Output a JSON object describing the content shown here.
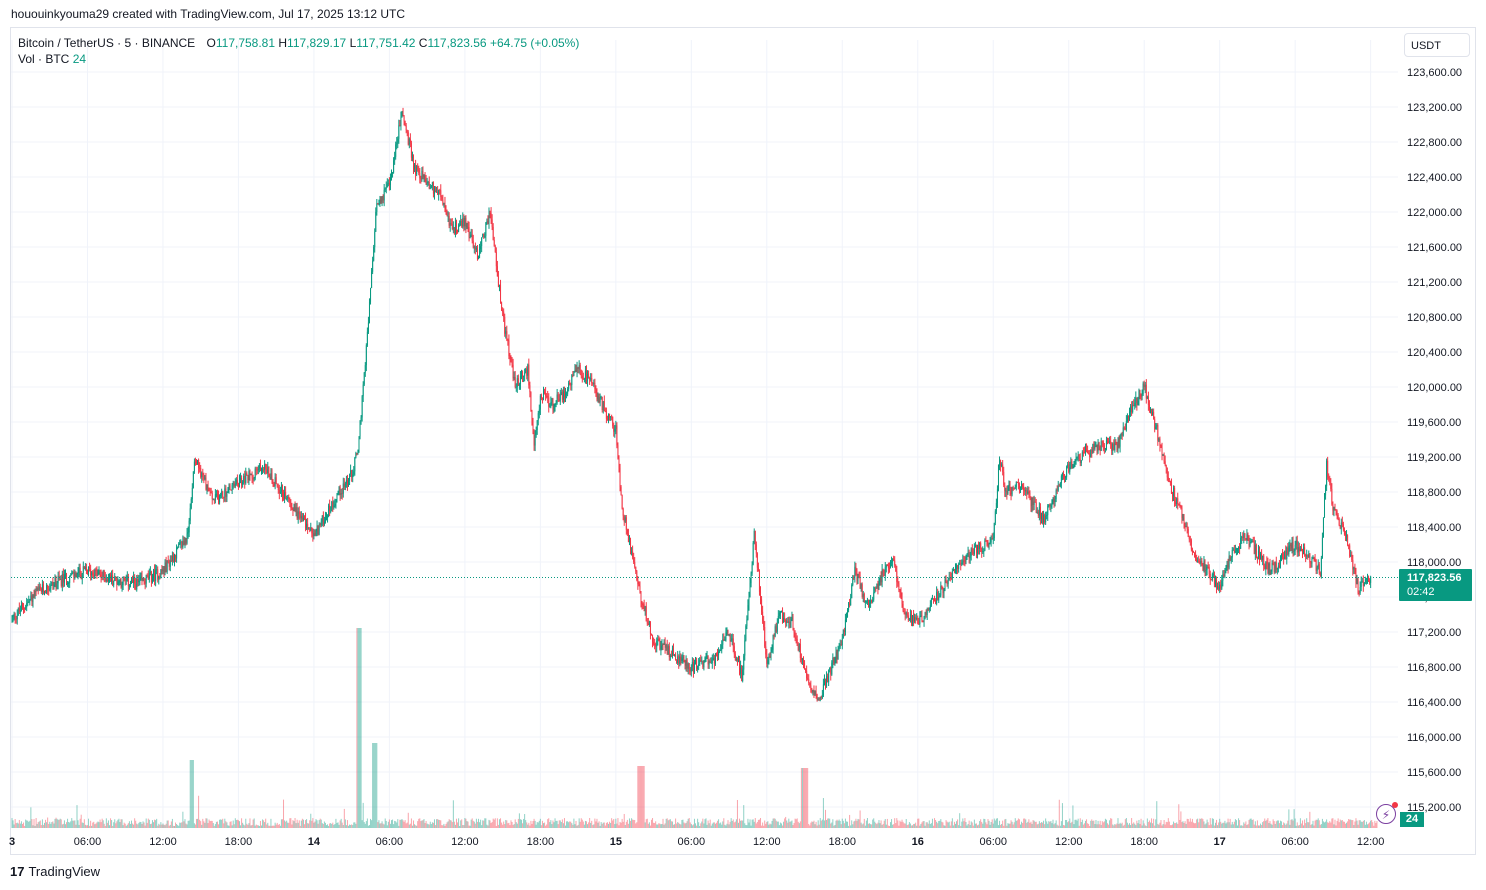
{
  "header": {
    "credit": "hououinkyouma29 created with TradingView.com, Jul 17, 2025 13:12 UTC"
  },
  "legend": {
    "symbol": "Bitcoin / TetherUS · 5 · BINANCE",
    "o_label": "O",
    "o_value": "117,758.81",
    "h_label": "H",
    "h_value": "117,829.17",
    "l_label": "L",
    "l_value": "117,751.42",
    "c_label": "C",
    "c_value": "117,823.56",
    "change": "+64.75 (+0.05%)",
    "vol_label": "Vol · BTC",
    "vol_value": "24"
  },
  "scale": {
    "currency": "USDT",
    "last_price": "117,823.56",
    "countdown": "02:42",
    "vol_badge": "24"
  },
  "footer": {
    "brand": "TradingView",
    "logo": "17"
  },
  "colors": {
    "up": "#089981",
    "down": "#f23645",
    "grid": "#f0f3fa",
    "text": "#131722"
  },
  "icons": {
    "alert": "lightning-alert-icon"
  },
  "chart_data": {
    "type": "candlestick",
    "title": "Bitcoin / TetherUS · 5 · BINANCE",
    "ylim": [
      114980,
      123850
    ],
    "y_ticks": [
      "115,200.00",
      "115,600.00",
      "116,000.00",
      "116,400.00",
      "116,800.00",
      "117,200.00",
      "117,600.00",
      "118,000.00",
      "118,400.00",
      "118,800.00",
      "119,200.00",
      "119,600.00",
      "120,000.00",
      "120,400.00",
      "120,800.00",
      "121,200.00",
      "121,600.00",
      "122,000.00",
      "122,400.00",
      "122,800.00",
      "123,200.00",
      "123,600.00"
    ],
    "x_ticks": [
      "3",
      "06:00",
      "12:00",
      "18:00",
      "14",
      "06:00",
      "12:00",
      "18:00",
      "15",
      "06:00",
      "12:00",
      "18:00",
      "16",
      "06:00",
      "12:00",
      "18:00",
      "17",
      "06:00",
      "12:00"
    ],
    "last_price": 117823.56,
    "price_path_hours": [
      0,
      2,
      4,
      6,
      8,
      10,
      12,
      14,
      14.5,
      16,
      18,
      20,
      22,
      24,
      26,
      27,
      27.5,
      28,
      29,
      30,
      31,
      32,
      34,
      35,
      36,
      37,
      38,
      39,
      40,
      41,
      41.5,
      42,
      43,
      44,
      45,
      46,
      48,
      48.5,
      49,
      50,
      51,
      52,
      54,
      56,
      57,
      58,
      59,
      59.5,
      60,
      61,
      62,
      63,
      64,
      66,
      67,
      68,
      69,
      70,
      71,
      72,
      74,
      76,
      78,
      78.5,
      79,
      80,
      81,
      82,
      84,
      86,
      88,
      89,
      90,
      91,
      92,
      93,
      94,
      95,
      96,
      97,
      98,
      100,
      102,
      104,
      104.5,
      105,
      106,
      107,
      108,
      108.5
    ],
    "price_path_values": [
      117350,
      117650,
      117800,
      117900,
      117800,
      117750,
      117900,
      118300,
      119200,
      118700,
      118900,
      119100,
      118700,
      118300,
      118800,
      119000,
      119300,
      120100,
      122100,
      122300,
      123150,
      122500,
      122200,
      121800,
      121900,
      121500,
      122000,
      120800,
      120000,
      120200,
      119300,
      119900,
      119800,
      119950,
      120200,
      120050,
      119500,
      118600,
      118300,
      117600,
      117100,
      117000,
      116800,
      116900,
      117200,
      116700,
      118300,
      117600,
      116800,
      117400,
      117300,
      116800,
      116400,
      117100,
      117900,
      117500,
      117800,
      118050,
      117400,
      117300,
      117700,
      118100,
      118250,
      119200,
      118800,
      118900,
      118700,
      118500,
      119100,
      119300,
      119350,
      119750,
      120000,
      119500,
      118900,
      118550,
      118100,
      117900,
      117700,
      118100,
      118300,
      117900,
      118200,
      117900,
      119100,
      118600,
      118300,
      117700,
      117823
    ]
  }
}
